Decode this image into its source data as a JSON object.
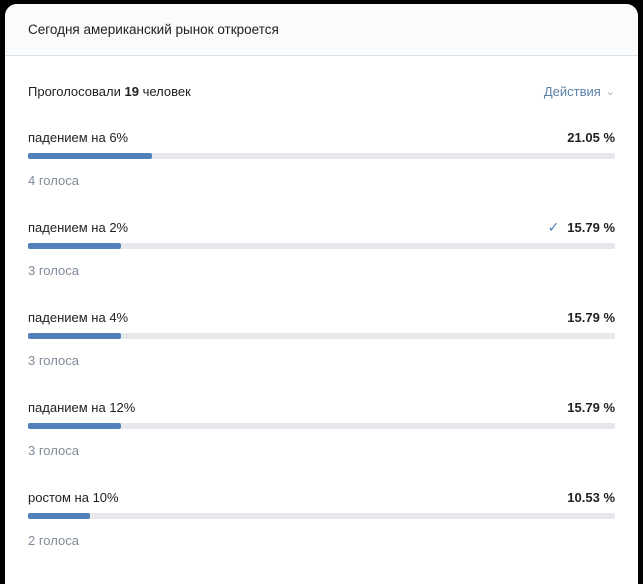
{
  "card": {
    "title": "Сегодня американский рынок откроется",
    "voted_prefix": "Проголосовали",
    "voted_count": "19",
    "voted_suffix": "человек",
    "actions_label": "Действия"
  },
  "icons": {
    "chevron_down": "⌄",
    "check": "✓"
  },
  "colors": {
    "accent": "#5181b8",
    "bar_track": "#e7e8ec",
    "secondary_text": "#818c99",
    "link": "#5b81a8",
    "header_bg": "#fafbfc",
    "page_bg": "#000000"
  },
  "chart_data": {
    "type": "bar",
    "title": "Сегодня американский рынок откроется",
    "categories": [
      "падением на 6%",
      "падением на 2%",
      "падением на 4%",
      "паданием на 12%",
      "ростом на 10%"
    ],
    "values": [
      21.05,
      15.79,
      15.79,
      15.79,
      10.53
    ],
    "votes": [
      4,
      3,
      3,
      3,
      2
    ],
    "total_voted": 19
  },
  "options": [
    {
      "label": "падением на 6%",
      "percent": "21.05 %",
      "votes": "4 голоса",
      "fill": 21.05,
      "voted": false
    },
    {
      "label": "падением на 2%",
      "percent": "15.79 %",
      "votes": "3 голоса",
      "fill": 15.79,
      "voted": true
    },
    {
      "label": "падением на 4%",
      "percent": "15.79 %",
      "votes": "3 голоса",
      "fill": 15.79,
      "voted": false
    },
    {
      "label": "паданием на 12%",
      "percent": "15.79 %",
      "votes": "3 голоса",
      "fill": 15.79,
      "voted": false
    },
    {
      "label": "ростом на 10%",
      "percent": "10.53 %",
      "votes": "2 голоса",
      "fill": 10.53,
      "voted": false
    }
  ]
}
